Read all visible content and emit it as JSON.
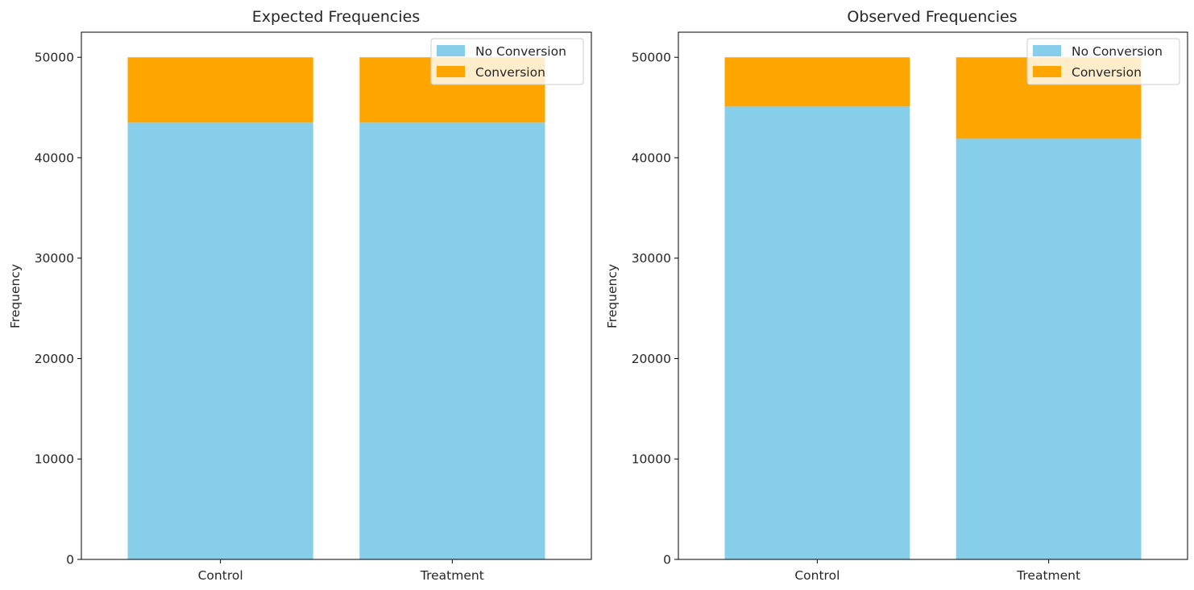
{
  "colors": {
    "no_conversion": "#87CEEB",
    "conversion": "#FFA500"
  },
  "chart_data": [
    {
      "type": "bar",
      "stacked": true,
      "title": "Expected Frequencies",
      "xlabel": "",
      "ylabel": "Frequency",
      "categories": [
        "Control",
        "Treatment"
      ],
      "series": [
        {
          "name": "No Conversion",
          "values": [
            43500,
            43500
          ]
        },
        {
          "name": "Conversion",
          "values": [
            6500,
            6500
          ]
        }
      ],
      "ylim": [
        0,
        52500
      ],
      "yticks": [
        0,
        10000,
        20000,
        30000,
        40000,
        50000
      ],
      "ytick_labels": [
        "0",
        "10000",
        "20000",
        "30000",
        "40000",
        "50000"
      ],
      "grid": false,
      "legend_position": "top-right"
    },
    {
      "type": "bar",
      "stacked": true,
      "title": "Observed Frequencies",
      "xlabel": "",
      "ylabel": "Frequency",
      "categories": [
        "Control",
        "Treatment"
      ],
      "series": [
        {
          "name": "No Conversion",
          "values": [
            45100,
            41900
          ]
        },
        {
          "name": "Conversion",
          "values": [
            4900,
            8100
          ]
        }
      ],
      "ylim": [
        0,
        52500
      ],
      "yticks": [
        0,
        10000,
        20000,
        30000,
        40000,
        50000
      ],
      "ytick_labels": [
        "0",
        "10000",
        "20000",
        "30000",
        "40000",
        "50000"
      ],
      "grid": false,
      "legend_position": "top-right"
    }
  ]
}
